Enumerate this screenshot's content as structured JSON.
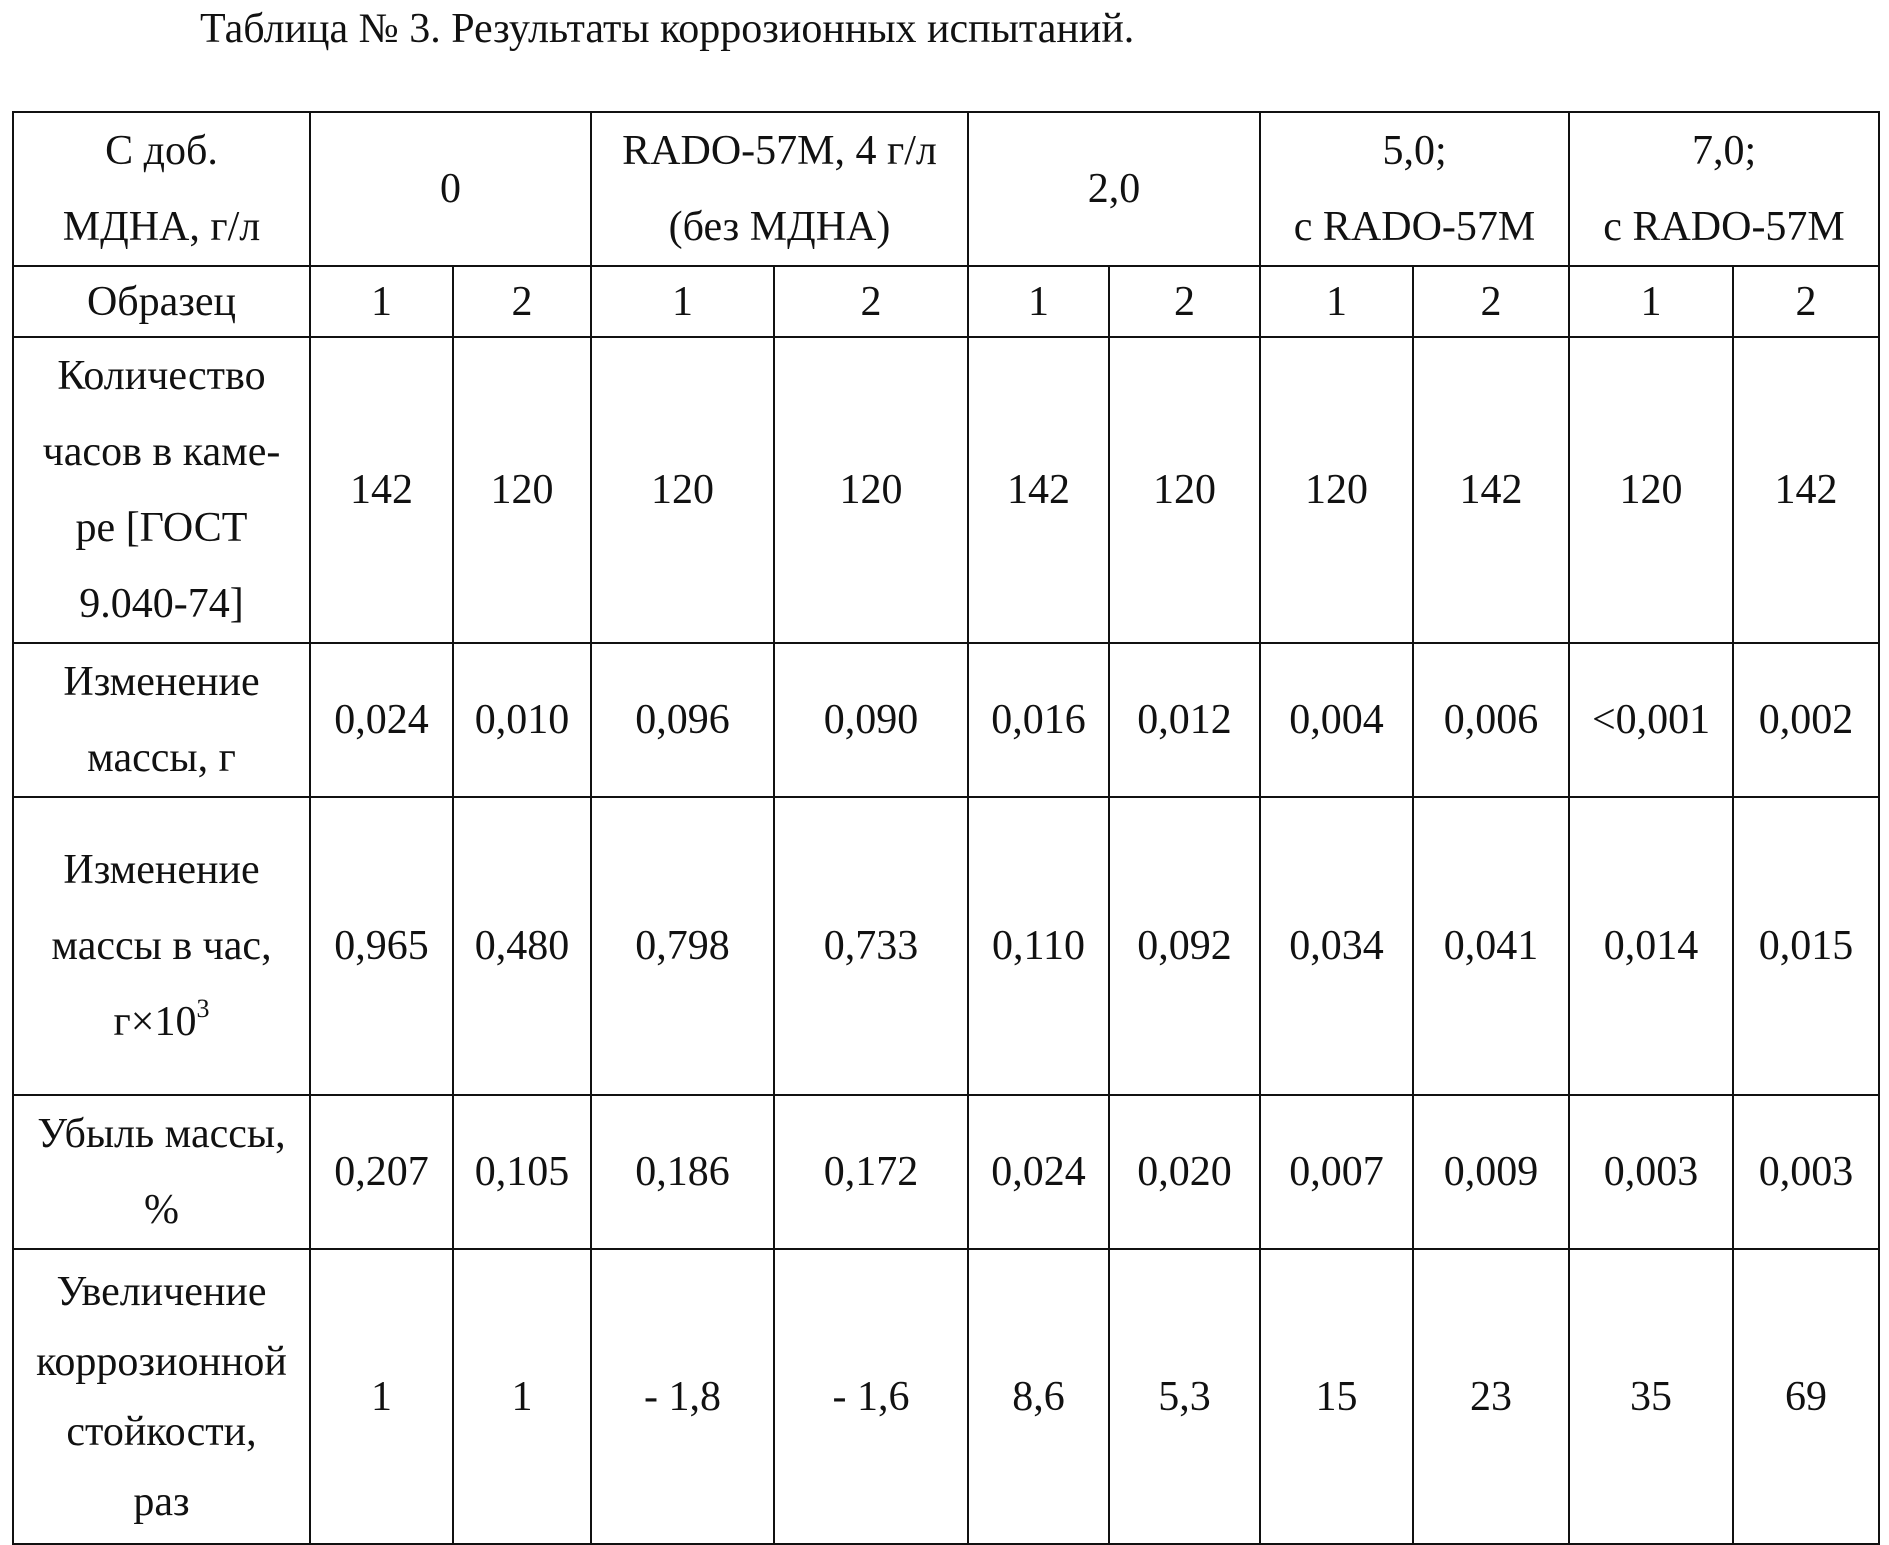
{
  "caption": "Таблица № 3. Результаты коррозионных испытаний.",
  "header": {
    "label": [
      "С доб.",
      "МДНА, г/л"
    ],
    "groups": [
      {
        "lines": [
          "0"
        ]
      },
      {
        "lines": [
          "RADO-57М, 4 г/л",
          "(без МДНА)"
        ]
      },
      {
        "lines": [
          "2,0"
        ]
      },
      {
        "lines": [
          "5,0;",
          "с RADO-57М"
        ]
      },
      {
        "lines": [
          "7,0;",
          "с RADO-57М"
        ]
      }
    ]
  },
  "sample_row": {
    "label": "Образец",
    "values": [
      "1",
      "2",
      "1",
      "2",
      "1",
      "2",
      "1",
      "2",
      "1",
      "2"
    ]
  },
  "rows": [
    {
      "id": "hours",
      "label": [
        "Количество",
        "часов в каме-",
        "ре [ГОСТ",
        "9.040-74]"
      ],
      "values": [
        "142",
        "120",
        "120",
        "120",
        "142",
        "120",
        "120",
        "142",
        "120",
        "142"
      ]
    },
    {
      "id": "mass-change",
      "label": [
        "Изменение",
        "массы, г"
      ],
      "values": [
        "0,024",
        "0,010",
        "0,096",
        "0,090",
        "0,016",
        "0,012",
        "0,004",
        "0,006",
        "<0,001",
        "0,002"
      ]
    },
    {
      "id": "mass-change-per-hour",
      "label": [
        "Изменение",
        "массы в час,"
      ],
      "label_unit": "г×10",
      "label_unit_exp": "3",
      "values": [
        "0,965",
        "0,480",
        "0,798",
        "0,733",
        "0,110",
        "0,092",
        "0,034",
        "0,041",
        "0,014",
        "0,015"
      ]
    },
    {
      "id": "mass-loss",
      "label": [
        "Убыль массы,",
        "%"
      ],
      "values": [
        "0,207",
        "0,105",
        "0,186",
        "0,172",
        "0,024",
        "0,020",
        "0,007",
        "0,009",
        "0,003",
        "0,003"
      ]
    },
    {
      "id": "corrosion-resistance-increase",
      "label": [
        "Увеличение",
        "коррозионной",
        "стойкости,",
        "раз"
      ],
      "values": [
        "1",
        "1",
        "- 1,8",
        "- 1,6",
        "8,6",
        "5,3",
        "15",
        "23",
        "35",
        "69"
      ]
    }
  ]
}
